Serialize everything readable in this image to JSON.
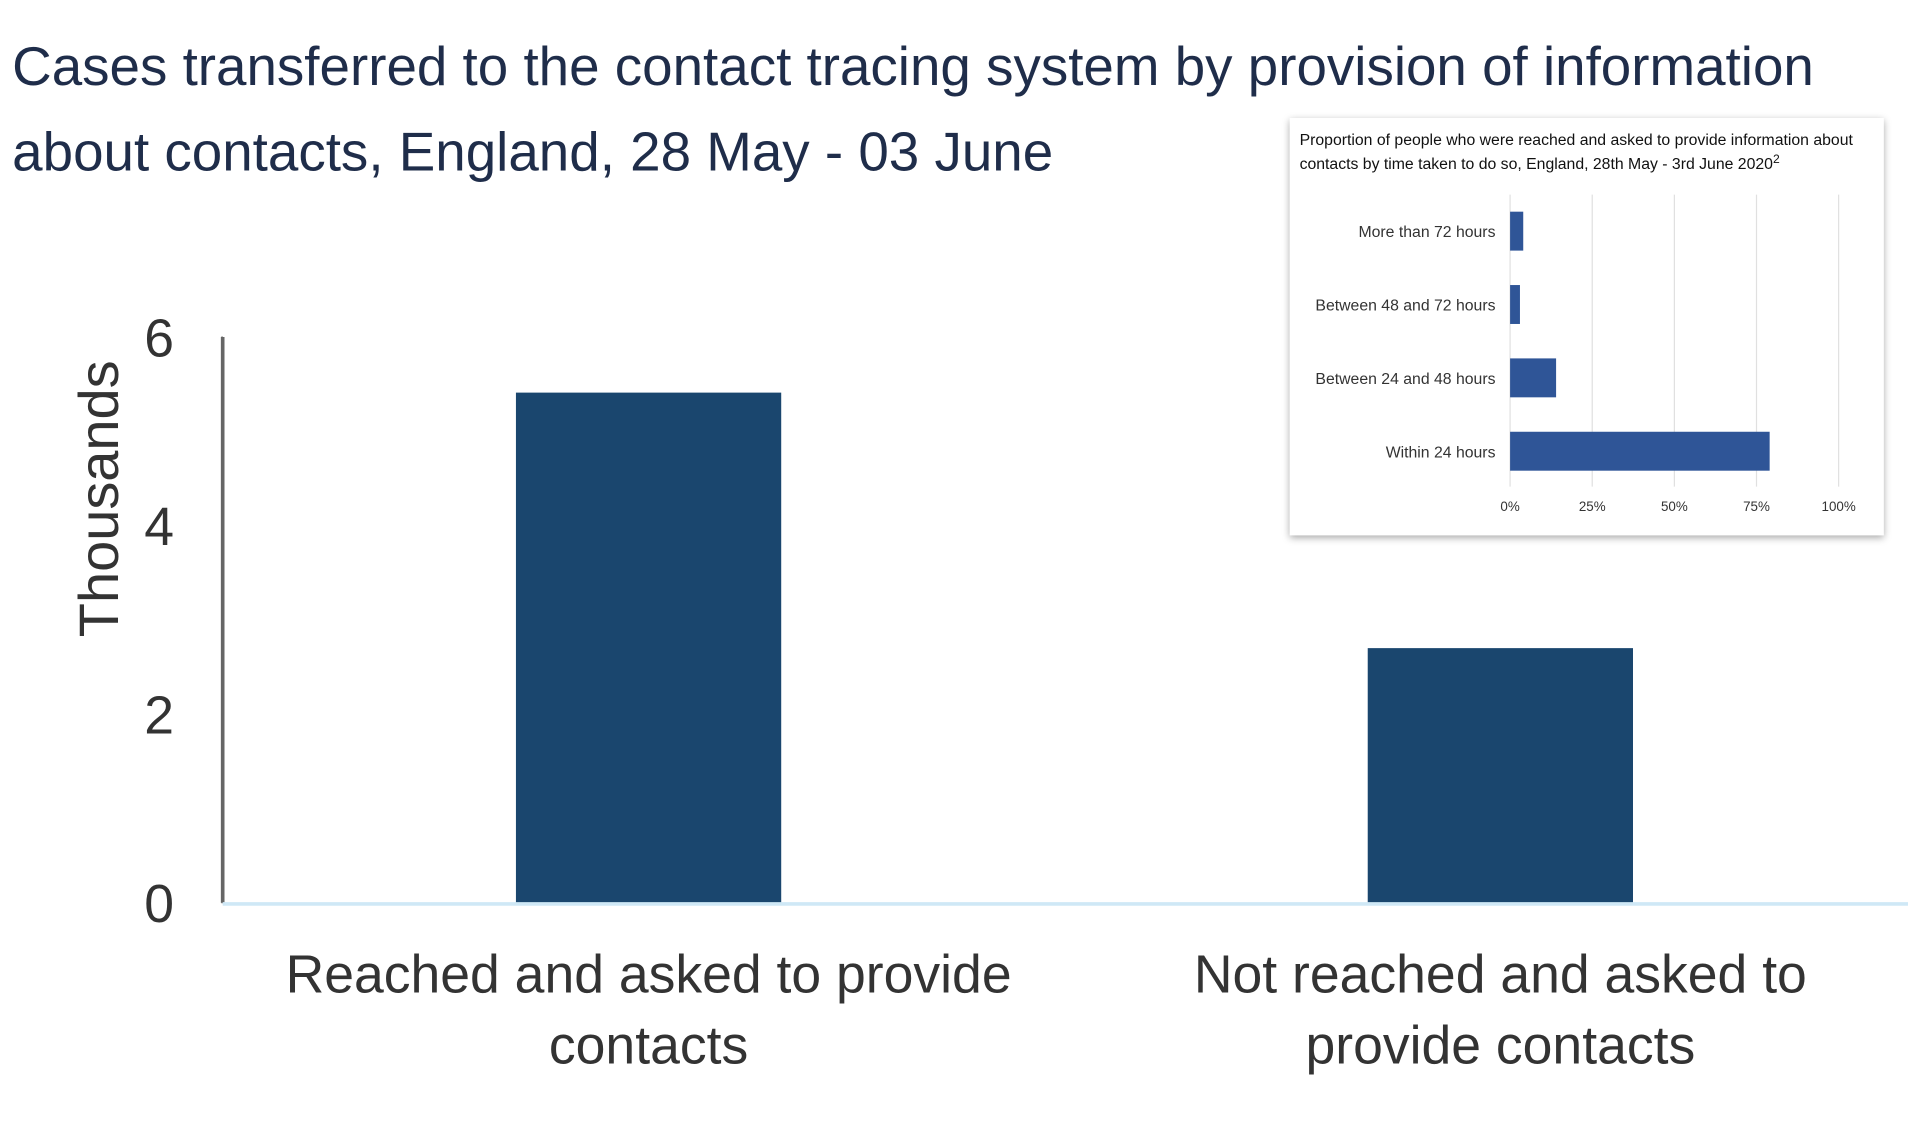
{
  "chart_data": [
    {
      "type": "bar",
      "title": "Cases transferred to the contact tracing system by provision of information about contacts, England, 28 May - 03 June",
      "y_label": "Thousands",
      "categories": [
        "Reached and asked to provide contacts",
        "Not reached and asked to provide contacts"
      ],
      "values": [
        5.41,
        2.7
      ],
      "color": "#1a466e",
      "ylim": [
        0,
        6
      ],
      "yticks": [
        0,
        2,
        4,
        6
      ]
    },
    {
      "type": "hbar",
      "title": "Proportion of people who were reached and asked to provide information about contacts by time taken to do so, England, 28th May - 3rd June 2020",
      "title_superscript": "2",
      "categories": [
        "More than 72 hours",
        "Between 48 and 72 hours",
        "Between 24 and 48 hours",
        "Within 24 hours"
      ],
      "values": [
        4,
        3,
        14,
        79
      ],
      "color": "#2f5597",
      "xlim": [
        0,
        100
      ],
      "xticks": [
        {
          "value": 0,
          "label": "0%"
        },
        {
          "value": 25,
          "label": "25%"
        },
        {
          "value": 50,
          "label": "50%"
        },
        {
          "value": 75,
          "label": "75%"
        },
        {
          "value": 100,
          "label": "100%"
        }
      ],
      "grid": true
    }
  ]
}
